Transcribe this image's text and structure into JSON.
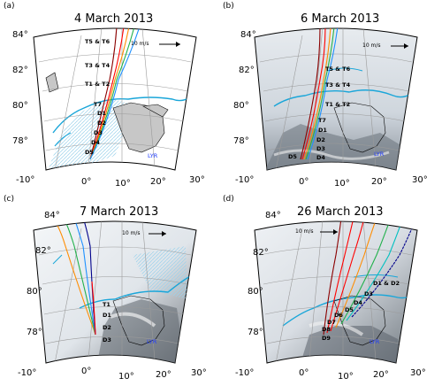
{
  "panels": [
    {
      "label": "(a)",
      "title": "4 March 2013",
      "lat_ticks": [
        "84°",
        "82°",
        "80°",
        "78°"
      ],
      "lon_ticks": [
        "-10°",
        "0°",
        "10°",
        "20°",
        "30°"
      ],
      "wind_scale": "10 m/s",
      "markers": [
        "T5 & T6",
        "T3 & T4",
        "T1 & T2",
        "T7",
        "D1",
        "D2",
        "D3",
        "D4",
        "D5"
      ],
      "place": "LYR",
      "background": "sea-ice-map"
    },
    {
      "label": "(b)",
      "title": "6 March 2013",
      "lat_ticks": [
        "84°",
        "82°",
        "80°",
        "78°"
      ],
      "lon_ticks": [
        "-10°",
        "0°",
        "10°",
        "20°",
        "30°"
      ],
      "wind_scale": "10 m/s",
      "markers": [
        "T5 & T6",
        "T3 & T4",
        "T1 & T2",
        "T7",
        "D1",
        "D2",
        "D3",
        "D4",
        "D5"
      ],
      "place": "LYR",
      "background": "satellite-image"
    },
    {
      "label": "(c)",
      "title": "7 March 2013",
      "lat_ticks": [
        "84°",
        "82°",
        "80°",
        "78°"
      ],
      "lon_ticks": [
        "-10°",
        "0°",
        "10°",
        "20°",
        "30°"
      ],
      "wind_scale": "10 m/s",
      "markers": [
        "T1",
        "D1",
        "D2",
        "D3"
      ],
      "place": "LYR",
      "background": "satellite-image"
    },
    {
      "label": "(d)",
      "title": "26 March 2013",
      "lat_ticks": [
        "84°",
        "82°",
        "80°",
        "78°"
      ],
      "lon_ticks": [
        "-10°",
        "0°",
        "10°",
        "20°",
        "30°"
      ],
      "wind_scale": "10 m/s",
      "markers": [
        "D1 & D2",
        "D3",
        "D4",
        "D5",
        "D6",
        "D7",
        "D8",
        "D9"
      ],
      "place": "LYR",
      "background": "satellite-image"
    }
  ],
  "colors": {
    "ice_edge": "#1aa6d9",
    "ice_hatch": "#9bd2ec",
    "land": "#c7c7c7",
    "grid": "#9a9a9a",
    "lyr": "#1f3cff",
    "track_colors": [
      "#00008b",
      "#1e90ff",
      "#00c0c0",
      "#22b14c",
      "#ff8c00",
      "#ff0000",
      "#8b0000"
    ]
  }
}
